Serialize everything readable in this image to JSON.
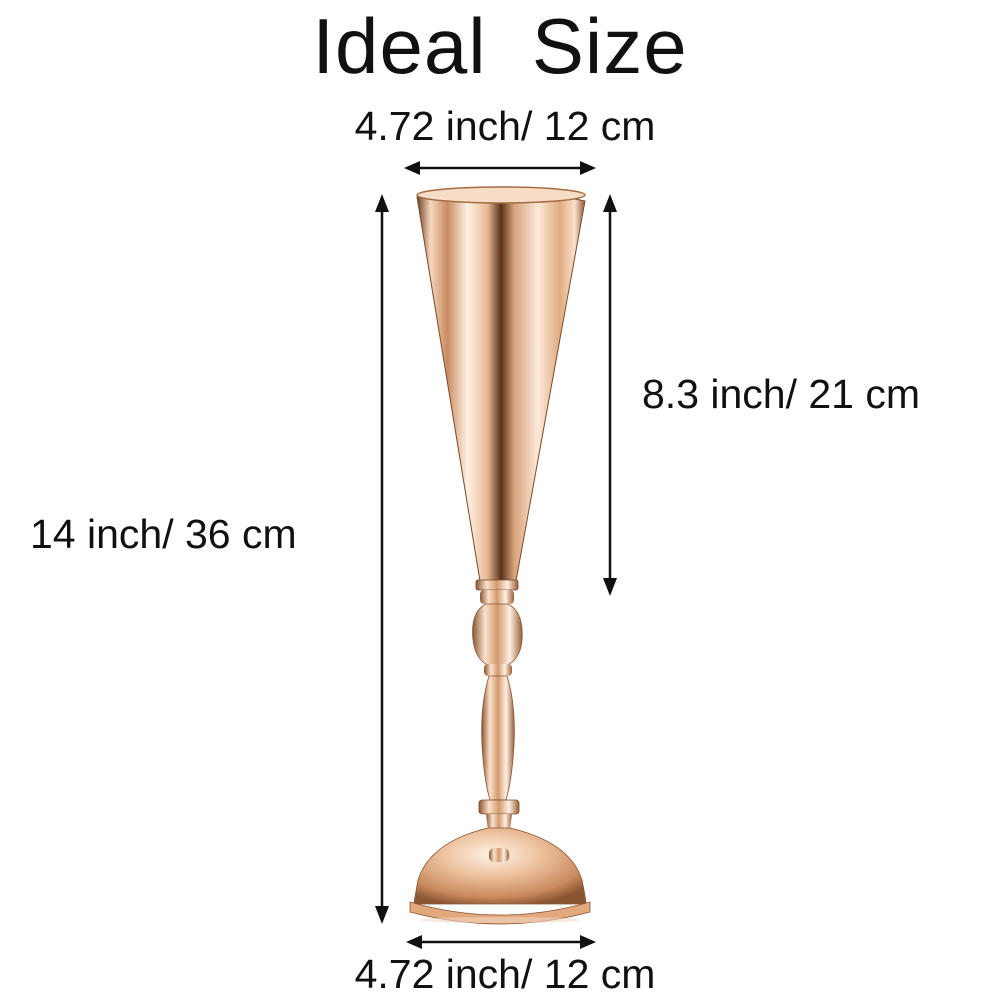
{
  "title": "Ideal  Size",
  "dimensions": {
    "top_width": "4.72 inch/ 12 cm",
    "vase_height": "8.3 inch/ 21 cm",
    "total_height": "14 inch/ 36 cm",
    "base_width": "4.72 inch/ 12 cm"
  },
  "colors": {
    "gold_light": "#fbe3cf",
    "gold_mid": "#e6b48c",
    "gold_dark": "#7a4a2a",
    "arrow": "#111111"
  },
  "icons": {
    "product": "gold-trumpet-vase"
  }
}
